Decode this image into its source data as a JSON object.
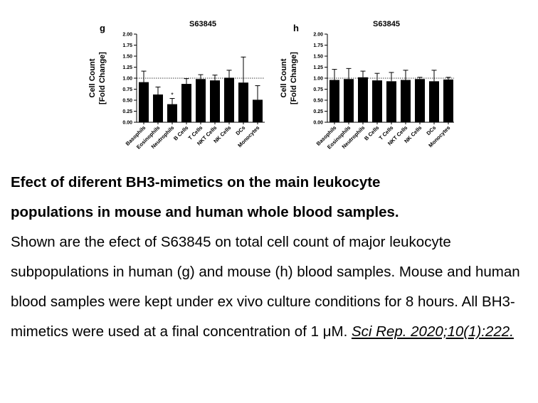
{
  "chart_data": [
    {
      "type": "bar",
      "panel_letter": "g",
      "title": "S63845",
      "ylabel_line1": "Cell Count",
      "ylabel_line2": "[Fold Change]",
      "ylim": [
        0,
        2.0
      ],
      "yticks": [
        "0.00",
        "0.25",
        "0.50",
        "0.75",
        "1.00",
        "1.25",
        "1.50",
        "1.75",
        "2.00"
      ],
      "reference_line": 1.0,
      "categories": [
        "Basophils",
        "Eosinophils",
        "Neutrophils",
        "B Cells",
        "T Cells",
        "NKT Cells",
        "NK Cells",
        "DCs",
        "Monocytes"
      ],
      "values": [
        0.91,
        0.63,
        0.41,
        0.87,
        0.98,
        0.95,
        1.01,
        0.9,
        0.51
      ],
      "errors": [
        0.25,
        0.17,
        0.13,
        0.12,
        0.1,
        0.12,
        0.17,
        0.58,
        0.32
      ],
      "annotations": [
        {
          "category": "Neutrophils",
          "text": "*"
        }
      ],
      "bar_color": "#000000"
    },
    {
      "type": "bar",
      "panel_letter": "h",
      "title": "S63845",
      "ylabel_line1": "Cell Count",
      "ylabel_line2": "[Fold Change]",
      "ylim": [
        0,
        2.0
      ],
      "yticks": [
        "0.00",
        "0.25",
        "0.50",
        "0.75",
        "1.00",
        "1.25",
        "1.50",
        "1.75",
        "2.00"
      ],
      "reference_line": 1.0,
      "categories": [
        "Basophils",
        "Eosinophils",
        "Neutrophils",
        "B Cells",
        "T Cells",
        "NKT Cells",
        "NK Cells",
        "DCs",
        "Monocytes"
      ],
      "values": [
        0.96,
        0.98,
        1.02,
        0.95,
        0.93,
        0.96,
        0.98,
        0.93,
        0.97
      ],
      "errors": [
        0.24,
        0.24,
        0.14,
        0.16,
        0.2,
        0.22,
        0.04,
        0.25,
        0.05
      ],
      "annotations": [],
      "bar_color": "#000000"
    }
  ],
  "caption": {
    "title_line1": "Efect of diferent BH3-mimetics on the main leukocyte",
    "title_line2": "populations in mouse and human whole blood samples.",
    "body": "Shown are the efect of S63845 on total cell count of major leukocyte subpopulations in human (g) and mouse (h) blood samples. Mouse and human blood samples were kept under ex vivo culture conditions for 8 hours. All BH3-mimetics were used at a final concentration of 1 μM. ",
    "reference": "Sci Rep. 2020;10(1):222."
  }
}
